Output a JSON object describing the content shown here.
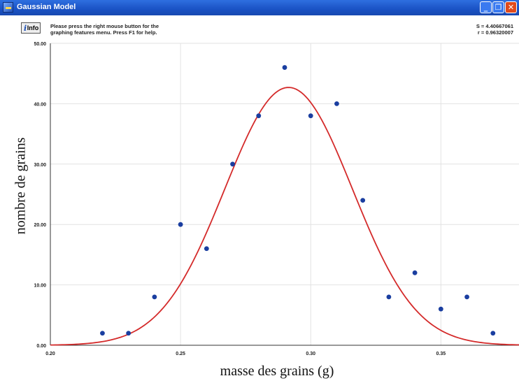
{
  "window": {
    "title": "Gaussian Model",
    "controls": {
      "minimize_icon": "minimize-icon",
      "maximize_icon": "maximize-icon",
      "close_icon": "close-icon"
    }
  },
  "toolbar": {
    "info_label": "Info",
    "help_line1": "Please press the right mouse button for the",
    "help_line2": "graphing features menu.  Press F1 for help."
  },
  "stats": {
    "s": "S = 4.40667061",
    "r": "r = 0.96320007"
  },
  "colors": {
    "curve": "#d42a2a",
    "points": "#1a3ea0",
    "titlebar": "#1a52c4"
  },
  "chart_data": {
    "type": "scatter",
    "xlabel": "masse des grains (g)",
    "ylabel": "nombre de grains",
    "xlim": [
      0.2,
      0.38
    ],
    "ylim": [
      0,
      50
    ],
    "x_ticks": [
      0.2,
      0.25,
      0.3,
      0.35
    ],
    "x_tick_labels": [
      "0.20",
      "0.25",
      "0.30",
      "0.35"
    ],
    "y_ticks": [
      0,
      10,
      20,
      30,
      40,
      50
    ],
    "y_tick_labels": [
      "0.00",
      "10.00",
      "20.00",
      "30.00",
      "40.00",
      "50.00"
    ],
    "grid": true,
    "series": [
      {
        "type": "scatter",
        "x": [
          0.22,
          0.23,
          0.24,
          0.25,
          0.26,
          0.27,
          0.28,
          0.29,
          0.3,
          0.31,
          0.32,
          0.33,
          0.34,
          0.35,
          0.36,
          0.37
        ],
        "y": [
          2,
          2,
          8,
          20,
          16,
          30,
          38,
          46,
          38,
          40,
          24,
          8,
          12,
          6,
          8,
          2
        ]
      },
      {
        "type": "line",
        "model": "gaussian",
        "amplitude": 42.7,
        "center": 0.2915,
        "sigma": 0.0245
      }
    ]
  }
}
